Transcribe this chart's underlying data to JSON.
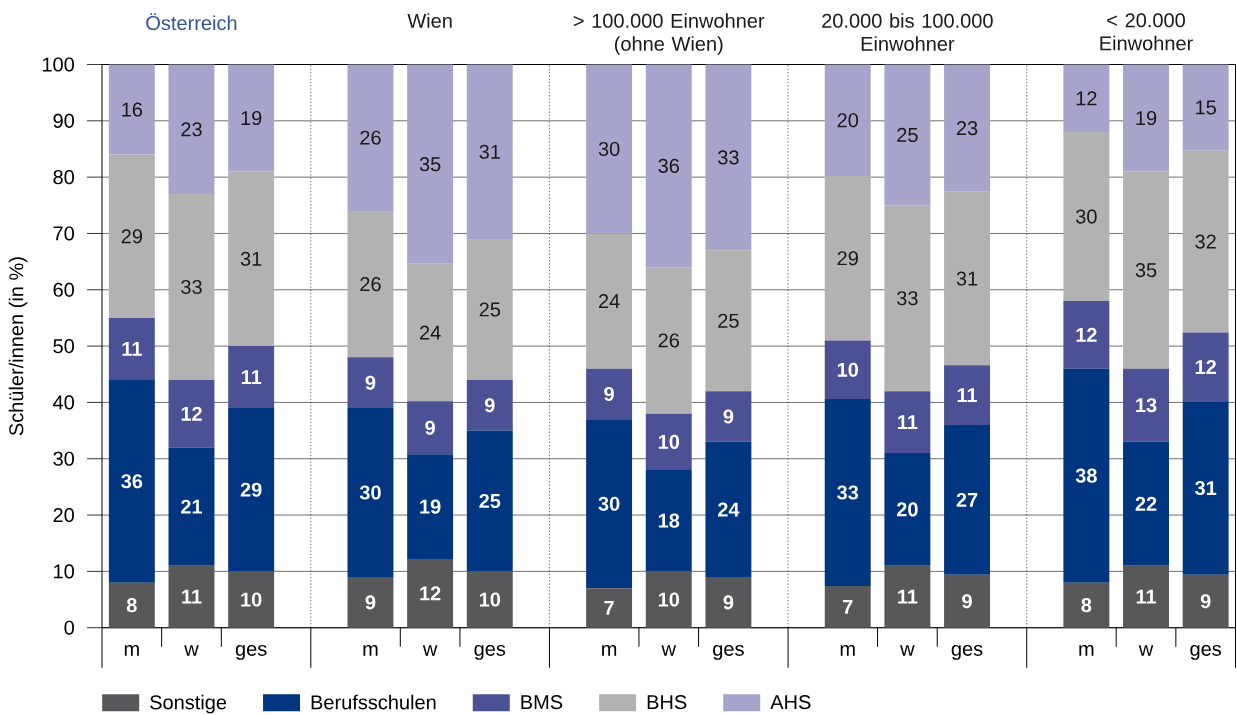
{
  "chart_data": {
    "type": "bar",
    "stacked": true,
    "categories": [
      "m",
      "w",
      "ges",
      null,
      "m",
      "w",
      "ges",
      null,
      "m",
      "w",
      "ges",
      null,
      "m",
      "w",
      "ges",
      null,
      "m",
      "w",
      "ges"
    ],
    "series": [
      {
        "name": "Sonstige",
        "color": "#58585a",
        "values": [
          8,
          11,
          10,
          null,
          9,
          12.2,
          10,
          null,
          7,
          10,
          9,
          null,
          7.4,
          11,
          9.4,
          null,
          8,
          11,
          9.4
        ],
        "value_labels": [
          "8",
          "11",
          "10",
          null,
          "9",
          "12",
          "10",
          null,
          "7",
          "10",
          "9",
          null,
          "7",
          "11",
          "9",
          null,
          "8",
          "11",
          "9"
        ]
      },
      {
        "name": "Berufsschulen",
        "color": "#003580",
        "values": [
          36,
          21,
          29,
          null,
          30,
          18.6,
          25,
          null,
          30,
          18,
          24,
          null,
          33.2,
          20,
          26.6,
          null,
          38,
          22,
          30.8
        ],
        "value_labels": [
          "36",
          "21",
          "29",
          null,
          "30",
          "19",
          "25",
          null,
          "30",
          "18",
          "24",
          null,
          "33",
          "20",
          "27",
          null,
          "38",
          "22",
          "31"
        ]
      },
      {
        "name": "BMS",
        "color": "#4b5194",
        "values": [
          11,
          12,
          11,
          null,
          9,
          9.4,
          9,
          null,
          9,
          10,
          9,
          null,
          10.4,
          11,
          10.6,
          null,
          12,
          13,
          12.2
        ],
        "value_labels": [
          "11",
          "12",
          "11",
          null,
          "9",
          "9",
          "9",
          null,
          "9",
          "10",
          "9",
          null,
          "10",
          "11",
          "11",
          null,
          "12",
          "13",
          "12"
        ]
      },
      {
        "name": "BHS",
        "color": "#b2b2b2",
        "values": [
          29,
          33,
          31,
          null,
          26,
          24.4,
          25,
          null,
          24,
          26,
          25,
          null,
          29.2,
          33,
          30.8,
          null,
          30,
          35,
          32.3
        ],
        "value_labels": [
          "29",
          "33",
          "31",
          null,
          "26",
          "24",
          "25",
          null,
          "24",
          "26",
          "25",
          null,
          "29",
          "33",
          "31",
          null,
          "30",
          "35",
          "32"
        ]
      },
      {
        "name": "AHS",
        "color": "#a6a4ca",
        "values": [
          16,
          23,
          19,
          null,
          26,
          35.4,
          31,
          null,
          30,
          36,
          33,
          null,
          19.8,
          25,
          22.6,
          null,
          12,
          19,
          15.3
        ],
        "value_labels": [
          "16",
          "23",
          "19",
          null,
          "26",
          "35",
          "31",
          null,
          "30",
          "36",
          "33",
          null,
          "20",
          "25",
          "23",
          null,
          "12",
          "19",
          "15"
        ]
      }
    ],
    "ylabel": "Schüler/innen (in %)",
    "ylim": [
      0,
      100
    ],
    "yticks": [
      0,
      10,
      20,
      30,
      40,
      50,
      60,
      70,
      80,
      90,
      100
    ],
    "grid": true,
    "legend": "bottom",
    "annotations": [
      "Österreich",
      "Wien",
      "> 100.000 Einwohner (ohne Wien)",
      "20.000 bis 100.000 Einwohner",
      "< 20.000 Einwohner"
    ]
  }
}
